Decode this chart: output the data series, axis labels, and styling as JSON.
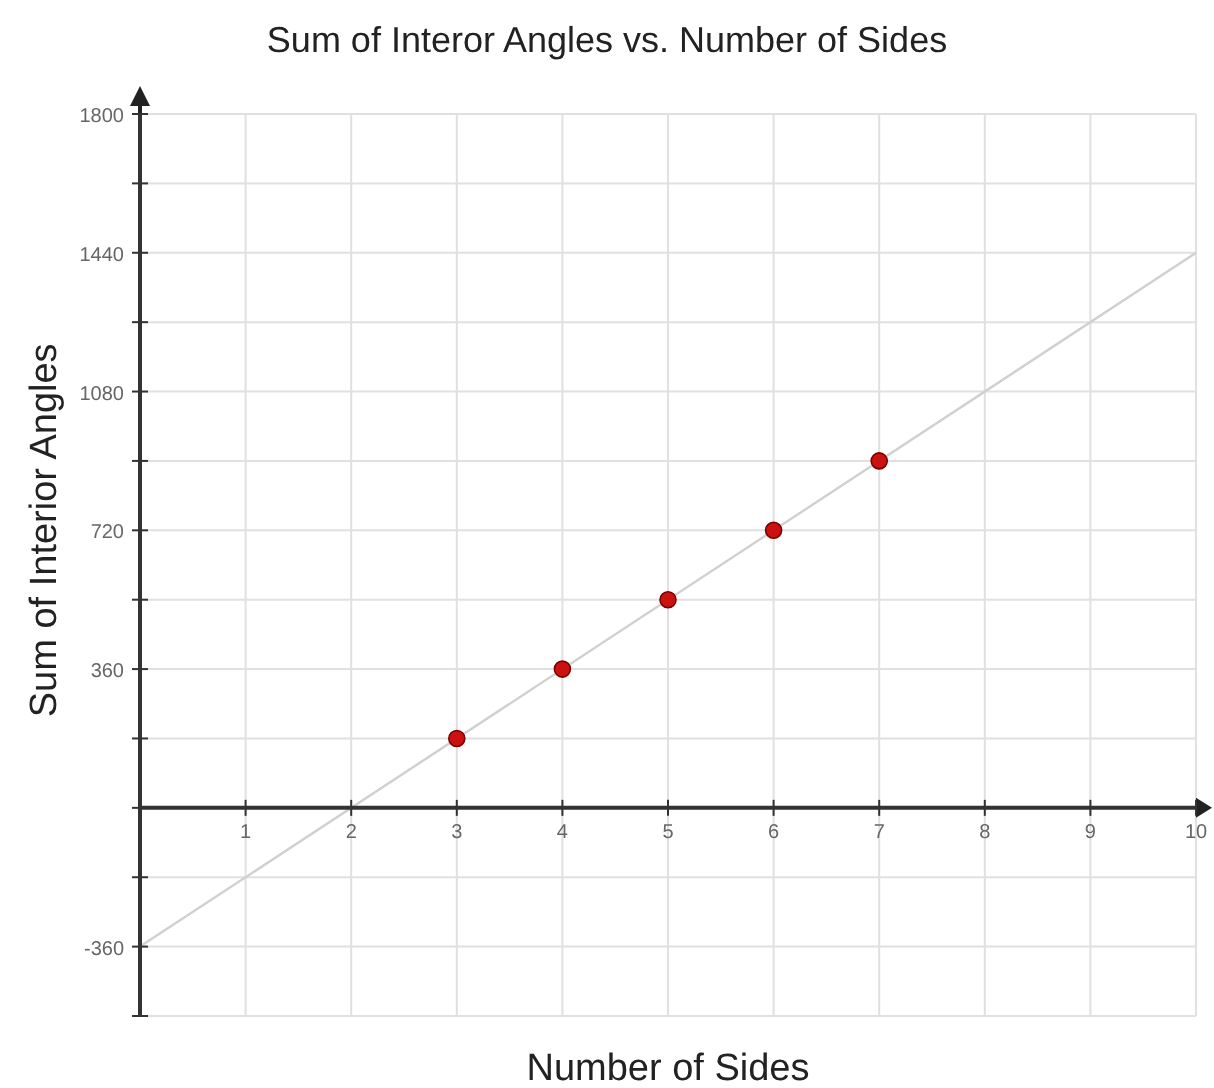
{
  "chart_data": {
    "type": "scatter",
    "title": "Sum of Interor Angles vs. Number of Sides",
    "xlabel": "Number of Sides",
    "ylabel": "Sum of Interior Angles",
    "xlim": [
      0,
      10
    ],
    "ylim": [
      -540,
      1800
    ],
    "xticks": [
      1,
      2,
      3,
      4,
      5,
      6,
      7,
      8,
      9,
      10
    ],
    "yticks": [
      {
        "value": -540,
        "label": null
      },
      -360,
      {
        "value": -180,
        "label": null
      },
      {
        "value": 0,
        "label": null
      },
      {
        "value": 180,
        "label": null
      },
      360,
      {
        "value": 540,
        "label": null
      },
      720,
      {
        "value": 900,
        "label": null
      },
      1080,
      {
        "value": 1260,
        "label": null
      },
      1440,
      {
        "value": 1620,
        "label": null
      },
      1800
    ],
    "grid": true,
    "marker": "circle",
    "series": [
      {
        "type": "line",
        "color": "#d0d0d0",
        "x": [
          0,
          10
        ],
        "values": [
          -360,
          1440
        ],
        "marker": "none"
      },
      {
        "color": "#cc1111",
        "x": [
          3,
          4,
          5,
          6,
          7
        ],
        "values": [
          180,
          360,
          540,
          720,
          900
        ]
      }
    ]
  }
}
